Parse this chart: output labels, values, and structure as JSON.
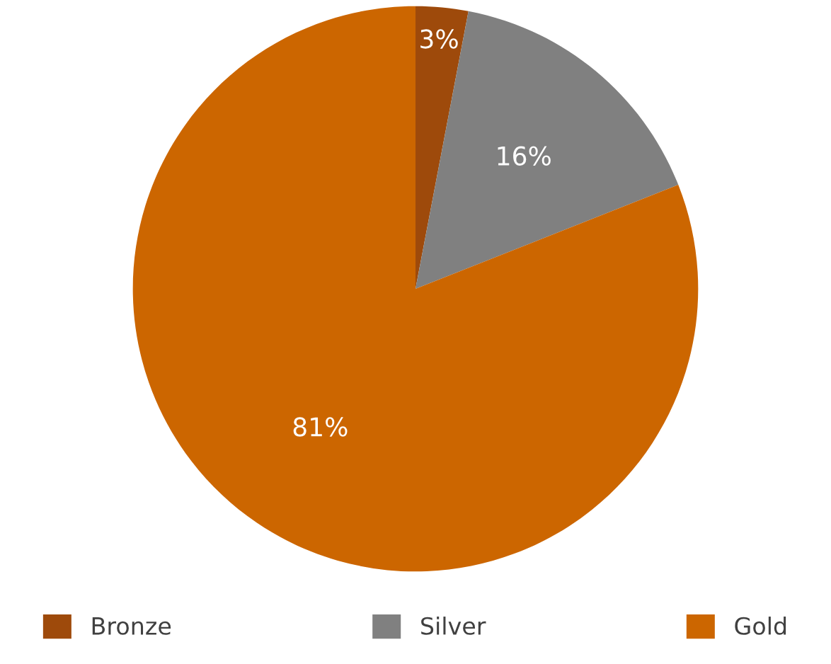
{
  "chart_data": {
    "type": "pie",
    "categories": [
      "Bronze",
      "Silver",
      "Gold"
    ],
    "values": [
      3,
      16,
      81
    ],
    "colors": [
      "#9e4a0b",
      "#808080",
      "#cc6600"
    ],
    "value_labels": [
      "3%",
      "16%",
      "81%"
    ],
    "legend": "bottom"
  }
}
